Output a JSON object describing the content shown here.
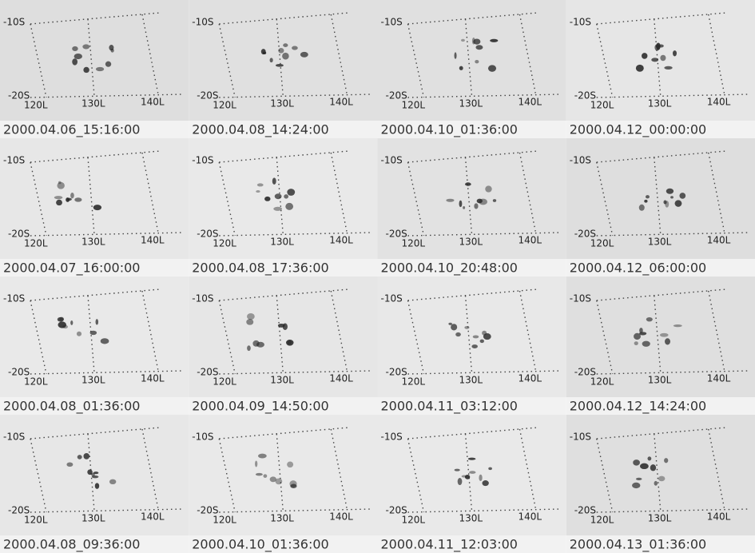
{
  "panels": [
    {
      "timestamp": "2000.04.06_15:16:00",
      "lat_labels": [
        "-10S",
        "-20S"
      ],
      "lon_labels": [
        "120L",
        "130L",
        "140L"
      ]
    },
    {
      "timestamp": "2000.04.08_14:24:00",
      "lat_labels": [
        "-10S",
        "-20S"
      ],
      "lon_labels": [
        "120L",
        "130L",
        "140L"
      ]
    },
    {
      "timestamp": "2000.04.10_01:36:00",
      "lat_labels": [
        "-10S",
        "-20S"
      ],
      "lon_labels": [
        "120L",
        "130L",
        "140L"
      ]
    },
    {
      "timestamp": "2000.04.12_00:00:00",
      "lat_labels": [
        "-10S",
        "-20S"
      ],
      "lon_labels": [
        "120L",
        "130L",
        "140L"
      ]
    },
    {
      "timestamp": "2000.04.07_16:00:00",
      "lat_labels": [
        "-10S",
        "-20S"
      ],
      "lon_labels": [
        "120L",
        "130L",
        "140L"
      ]
    },
    {
      "timestamp": "2000.04.08_17:36:00",
      "lat_labels": [
        "-10S",
        "-20S"
      ],
      "lon_labels": [
        "120L",
        "130L",
        "140L"
      ]
    },
    {
      "timestamp": "2000.04.10_20:48:00",
      "lat_labels": [
        "-10S",
        "-20S"
      ],
      "lon_labels": [
        "120L",
        "130L",
        "140L"
      ]
    },
    {
      "timestamp": "2000.04.12_06:00:00",
      "lat_labels": [
        "-10S",
        "-20S"
      ],
      "lon_labels": [
        "120L",
        "130L",
        "140L"
      ]
    },
    {
      "timestamp": "2000.04.08_01:36:00",
      "lat_labels": [
        "-10S",
        "-20S"
      ],
      "lon_labels": [
        "120L",
        "130L",
        "140L"
      ]
    },
    {
      "timestamp": "2000.04.09_14:50:00",
      "lat_labels": [
        "-10S",
        "-20S"
      ],
      "lon_labels": [
        "120L",
        "130L",
        "140L"
      ]
    },
    {
      "timestamp": "2000.04.11_03:12:00",
      "lat_labels": [
        "-10S",
        "-20S"
      ],
      "lon_labels": [
        "120L",
        "130L",
        "140L"
      ]
    },
    {
      "timestamp": "2000.04.12_14:24:00",
      "lat_labels": [
        "-10S",
        "-20S"
      ],
      "lon_labels": [
        "120L",
        "130L",
        "140L"
      ]
    },
    {
      "timestamp": "2000.04.08_09:36:00",
      "lat_labels": [
        "-10S",
        "-20S"
      ],
      "lon_labels": [
        "120L",
        "130L",
        "140L"
      ]
    },
    {
      "timestamp": "2000.04.10_01:36:00",
      "lat_labels": [
        "-10S",
        "-20S"
      ],
      "lon_labels": [
        "120L",
        "130L",
        "140L"
      ]
    },
    {
      "timestamp": "2000.04.11_12:03:00",
      "lat_labels": [
        "-10S",
        "-20S"
      ],
      "lon_labels": [
        "120L",
        "130L",
        "140L"
      ]
    },
    {
      "timestamp": "2000.04.13_01:36:00",
      "lat_labels": [
        "-10S",
        "-20S"
      ],
      "lon_labels": [
        "120L",
        "130L",
        "140L"
      ]
    }
  ]
}
